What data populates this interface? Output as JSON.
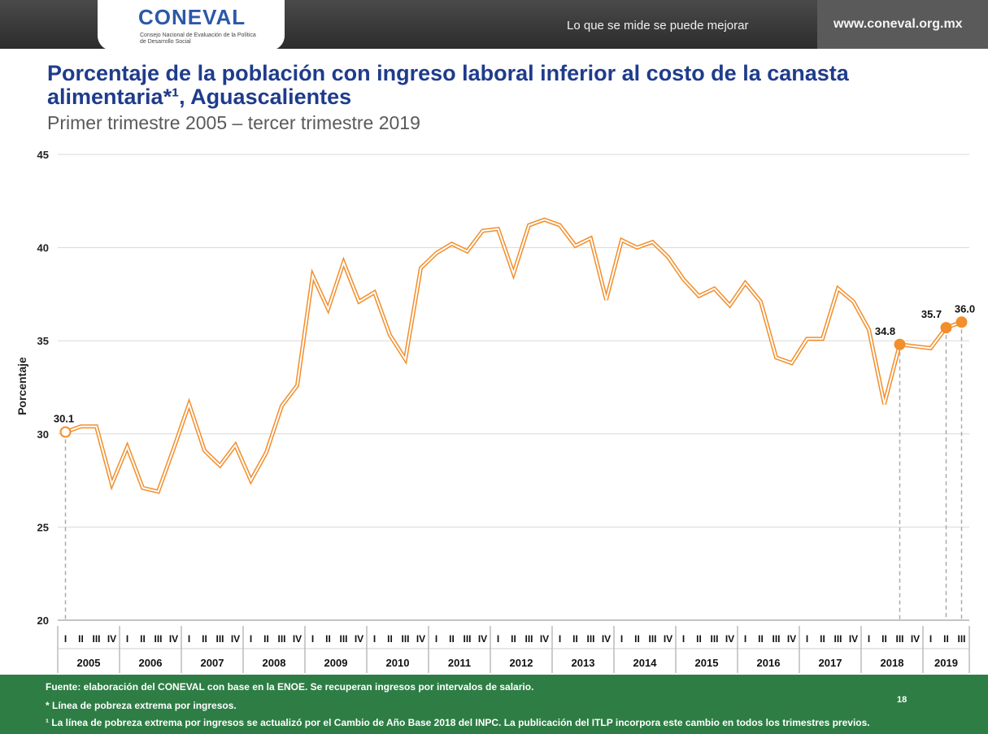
{
  "header": {
    "logo_name": "CONEVAL",
    "logo_subtitle": "Consejo Nacional de Evaluación de la Política de Desarrollo Social",
    "slogan": "Lo que se mide se puede mejorar",
    "url": "www.coneval.org.mx"
  },
  "title": "Porcentaje de la población con ingreso laboral inferior al costo de la canasta alimentaria*¹, Aguascalientes",
  "subtitle": "Primer trimestre 2005 – tercer trimestre 2019",
  "chart_data": {
    "type": "line",
    "ylabel": "Porcentaje",
    "ylim": [
      20,
      45
    ],
    "yticks": [
      20,
      25,
      30,
      35,
      40,
      45
    ],
    "grid": true,
    "quarter_labels": [
      "I",
      "II",
      "III",
      "IV"
    ],
    "years": [
      "2005",
      "2006",
      "2007",
      "2008",
      "2009",
      "2010",
      "2011",
      "2012",
      "2013",
      "2014",
      "2015",
      "2016",
      "2017",
      "2018",
      "2019"
    ],
    "series": [
      {
        "color": "#f28e2b",
        "values": [
          30.1,
          30.4,
          30.4,
          27.3,
          29.3,
          27.1,
          26.9,
          29.2,
          31.6,
          29.1,
          28.3,
          29.4,
          27.5,
          29.0,
          31.5,
          32.6,
          38.5,
          36.7,
          39.2,
          37.1,
          37.6,
          35.3,
          34.0,
          38.9,
          39.7,
          40.2,
          39.8,
          40.9,
          41.0,
          38.6,
          41.2,
          41.5,
          41.2,
          40.1,
          40.5,
          37.2,
          40.4,
          40.0,
          40.3,
          39.5,
          38.3,
          37.4,
          37.8,
          36.9,
          38.1,
          37.1,
          34.1,
          33.8,
          35.1,
          35.1,
          37.8,
          37.1,
          35.6,
          31.6,
          34.8,
          34.7,
          34.6,
          35.7,
          36.0
        ]
      }
    ],
    "highlighted_points": [
      {
        "index": 0,
        "label": "30.1"
      },
      {
        "index": 54,
        "label": "34.8"
      },
      {
        "index": 57,
        "label": "35.7"
      },
      {
        "index": 58,
        "label": "36.0"
      }
    ]
  },
  "footer": {
    "source": "Fuente: elaboración del CONEVAL con base en la ENOE. Se recuperan ingresos por intervalos de salario.",
    "note1": "* Línea de pobreza extrema por ingresos.",
    "note2": "¹ La línea de pobreza extrema por ingresos se actualizó por el Cambio de Año Base 2018 del INPC. La publicación del ITLP incorpora este cambio en todos los trimestres previos.",
    "page_number": "18"
  }
}
